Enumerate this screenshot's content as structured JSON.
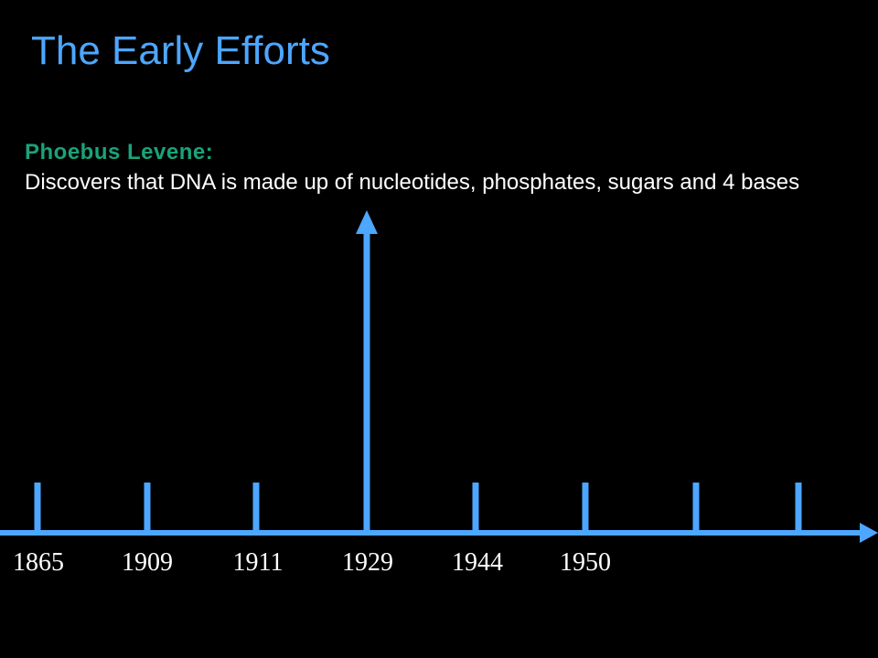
{
  "slide": {
    "title": "The Early Efforts",
    "title_color": "#4da6ff"
  },
  "event": {
    "heading": "Phoebus Levene:",
    "heading_color": "#1aa37a",
    "description": "Discovers that DNA is made up of nucleotides, phosphates, sugars and 4 bases",
    "marker_year": "1929"
  },
  "timeline": {
    "line_color": "#4da6ff",
    "years": [
      "1865",
      "1909",
      "1911",
      "1929",
      "1944",
      "1950"
    ],
    "tick_count": 8
  }
}
